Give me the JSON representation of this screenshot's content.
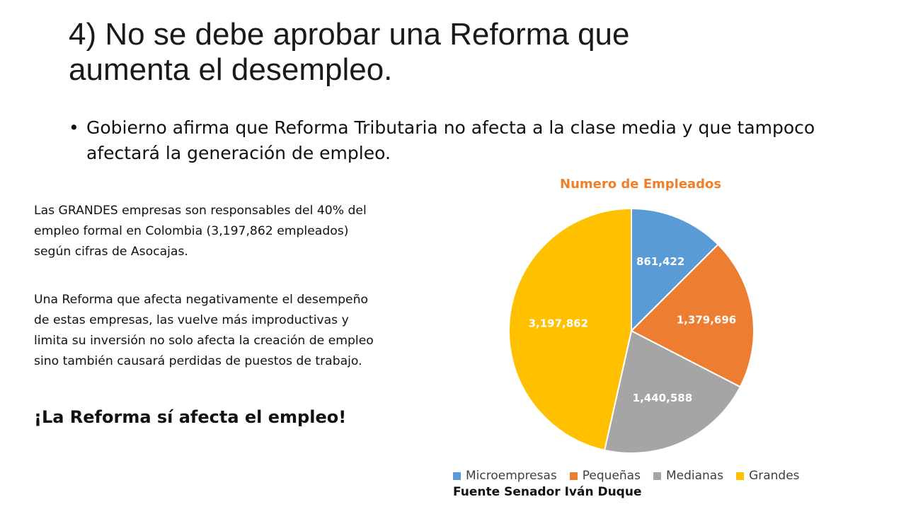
{
  "slide": {
    "title_line1": "4) No se debe aprobar una Reforma que",
    "title_line2": "aumenta el desempleo.",
    "bullet": "Gobierno afirma que Reforma Tributaria no afecta a la clase media y que tampoco afectará la generación de empleo.",
    "paragraph1_line1": "Las GRANDES empresas son responsables del 40% del",
    "paragraph1_line2": "empleo formal en Colombia (3,197,862 empleados)",
    "paragraph1_line3": "según cifras de Asocajas.",
    "paragraph2_line1": "Una Reforma que afecta negativamente el desempeño",
    "paragraph2_line2": "de estas empresas, las vuelve más improductivas y",
    "paragraph2_line3": "limita su inversión no solo afecta la creación de empleo",
    "paragraph2_line4": "sino también causará perdidas de puestos de trabajo.",
    "punchline": "¡La Reforma sí afecta el empleo!",
    "source": "Fuente Senador Iván Duque"
  },
  "chart_data": {
    "type": "pie",
    "title": "Numero de Empleados",
    "categories": [
      "Microempresas",
      "Pequeñas",
      "Medianas",
      "Grandes"
    ],
    "values": [
      861422,
      1379696,
      1440588,
      3197862
    ],
    "data_labels": [
      "861,422",
      "1,379,696",
      "1,440,588",
      "3,197,862"
    ],
    "colors": [
      "#5b9bd5",
      "#ed7d31",
      "#a5a5a5",
      "#ffc000"
    ],
    "legend": "bottom",
    "start_angle_deg": 0,
    "direction": "clockwise"
  }
}
